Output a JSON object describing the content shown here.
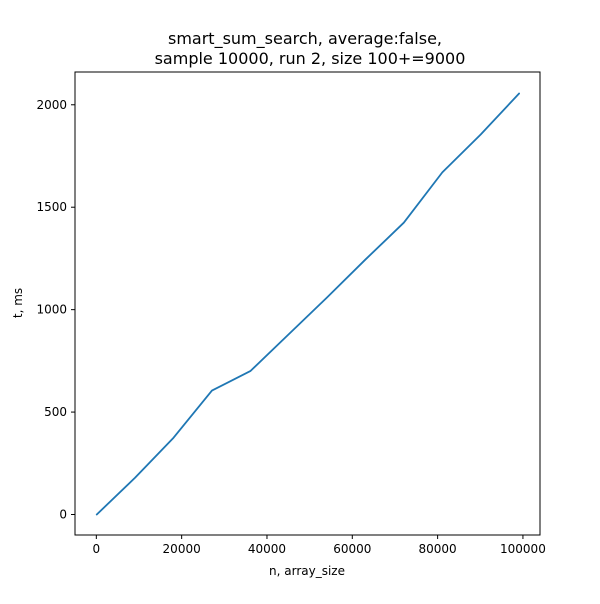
{
  "chart_data": {
    "type": "line",
    "title_lines": [
      "smart_sum_search, average:false,",
      "sample 10000, run 2, size 100+=9000"
    ],
    "xlabel": "n, array_size",
    "ylabel": "t, ms",
    "xlim": [
      -5000,
      104000
    ],
    "ylim": [
      -100,
      2160
    ],
    "x_ticks": [
      0,
      20000,
      40000,
      60000,
      80000,
      100000
    ],
    "y_ticks": [
      0,
      500,
      1000,
      1500,
      2000
    ],
    "grid": false,
    "series": [
      {
        "color": "#1f77b4",
        "x": [
          100,
          9100,
          18100,
          27100,
          36100,
          45100,
          54100,
          63100,
          72100,
          81100,
          90100,
          99100
        ],
        "y": [
          0,
          180,
          375,
          605,
          700,
          880,
          1060,
          1245,
          1425,
          1670,
          1855,
          2055
        ]
      }
    ]
  }
}
